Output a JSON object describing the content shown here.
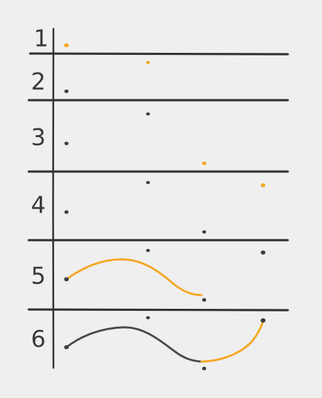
{
  "colors": {
    "background": "#efefef",
    "ink": "#333333",
    "dot_dark": "#3d3d3d",
    "curve_dark": "#4a4a4a",
    "accent": "#f5a623"
  },
  "rows": [
    {
      "label": "1"
    },
    {
      "label": "2"
    },
    {
      "label": "3"
    },
    {
      "label": "4"
    },
    {
      "label": "5"
    },
    {
      "label": "6"
    }
  ]
}
